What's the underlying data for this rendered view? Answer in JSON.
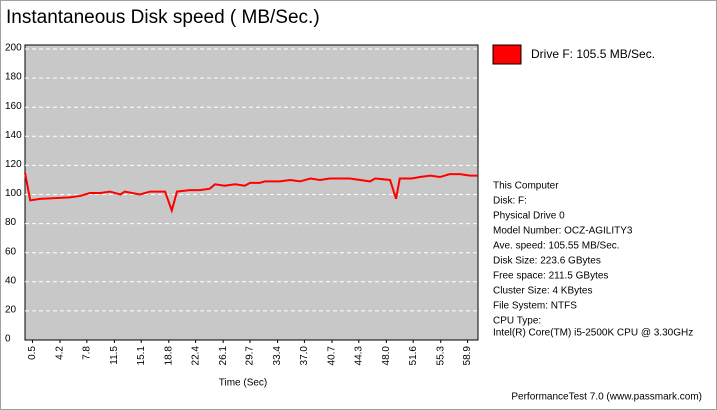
{
  "chart_data": {
    "type": "line",
    "title": "Instantaneous Disk speed ( MB/Sec.)",
    "x_label": "Time (Sec)",
    "x": [
      -0.5,
      0.2,
      1.5,
      3.5,
      5.5,
      6.9,
      8.2,
      9.6,
      10.9,
      12.3,
      12.9,
      14.9,
      16.3,
      18.3,
      19.2,
      19.9,
      21.6,
      23.0,
      24.3,
      25.0,
      26.3,
      27.7,
      29.0,
      29.7,
      31.0,
      31.7,
      33.7,
      35.1,
      36.4,
      37.8,
      39.1,
      40.4,
      43.1,
      44.5,
      45.8,
      46.5,
      48.5,
      49.3,
      49.8,
      51.4,
      52.5,
      53.9,
      55.2,
      56.5,
      57.9,
      59.2,
      60.3
    ],
    "series": [
      {
        "name": "Drive F:  105.5 MB/Sec.",
        "color": "#ff0000",
        "values": [
          115,
          96,
          97,
          97.5,
          98,
          99,
          101,
          101,
          102,
          100,
          102,
          100,
          102,
          102,
          89,
          102,
          103,
          103,
          104,
          107,
          106,
          107,
          106,
          108,
          108,
          109,
          109,
          110,
          109,
          111,
          110,
          111,
          111,
          110,
          109,
          111,
          110,
          97,
          111,
          111,
          112,
          113,
          112,
          114,
          114,
          113,
          113
        ]
      }
    ],
    "xlim": [
      -0.5,
      60.3
    ],
    "xticks": [
      0.5,
      4.2,
      7.8,
      11.5,
      15.1,
      18.8,
      22.4,
      26.1,
      29.7,
      33.4,
      {
        "value": 37,
        "label": "37.0"
      },
      40.7,
      44.3,
      {
        "value": 48,
        "label": "48.0"
      },
      51.6,
      55.3,
      58.9
    ],
    "ylim": [
      0,
      200
    ],
    "yticks": [
      0,
      20,
      40,
      60,
      80,
      100,
      120,
      140,
      160,
      180,
      200
    ],
    "grid": true,
    "plot_background": "#c8c8c8",
    "info": [
      "This Computer",
      "Disk: F:",
      "Physical Drive 0",
      "Model Number: OCZ-AGILITY3",
      "Ave. speed: 105.55 MB/Sec.",
      "Disk Size: 223.6 GBytes",
      "Free space: 211.5 GBytes",
      "Cluster Size: 4 KBytes",
      "File System: NTFS",
      "CPU Type:",
      "Intel(R) Core(TM) i5-2500K CPU @ 3.30GHz"
    ],
    "footer": "PerformanceTest 7.0 (www.passmark.com)"
  }
}
